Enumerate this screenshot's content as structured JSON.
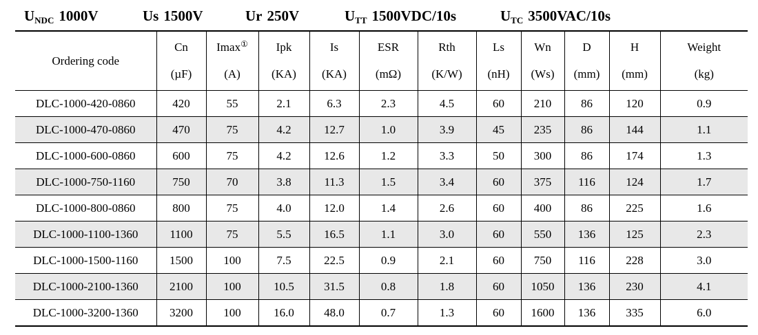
{
  "ratings": {
    "items": [
      {
        "symbol": "U",
        "sub": "NDC",
        "value": "1000V"
      },
      {
        "symbol": "Us",
        "sub": "",
        "value": "1500V"
      },
      {
        "symbol": "Ur",
        "sub": "",
        "value": "250V"
      },
      {
        "symbol": "U",
        "sub": "TT",
        "value": "1500VDC/10s"
      },
      {
        "symbol": "U",
        "sub": "TC",
        "value": "3500VAC/10s"
      }
    ]
  },
  "table": {
    "columns": [
      {
        "key": "ordering-code",
        "name": "Ordering code",
        "sup": "",
        "unit": ""
      },
      {
        "key": "cn",
        "name": "Cn",
        "sup": "",
        "unit": "(µF)"
      },
      {
        "key": "imax",
        "name": "Imax",
        "sup": "①",
        "unit": "(A)"
      },
      {
        "key": "ipk",
        "name": "Ipk",
        "sup": "",
        "unit": "(KA)"
      },
      {
        "key": "is",
        "name": "Is",
        "sup": "",
        "unit": "(KA)"
      },
      {
        "key": "esr",
        "name": "ESR",
        "sup": "",
        "unit": "(mΩ)"
      },
      {
        "key": "rth",
        "name": "Rth",
        "sup": "",
        "unit": "(K/W)"
      },
      {
        "key": "ls",
        "name": "Ls",
        "sup": "",
        "unit": "(nH)"
      },
      {
        "key": "wn",
        "name": "Wn",
        "sup": "",
        "unit": "(Ws)"
      },
      {
        "key": "d",
        "name": "D",
        "sup": "",
        "unit": "(mm)"
      },
      {
        "key": "h",
        "name": "H",
        "sup": "",
        "unit": "(mm)"
      },
      {
        "key": "weight",
        "name": "Weight",
        "sup": "",
        "unit": "(kg)"
      }
    ],
    "rows": [
      [
        "DLC-1000-420-0860",
        "420",
        "55",
        "2.1",
        "6.3",
        "2.3",
        "4.5",
        "60",
        "210",
        "86",
        "120",
        "0.9"
      ],
      [
        "DLC-1000-470-0860",
        "470",
        "75",
        "4.2",
        "12.7",
        "1.0",
        "3.9",
        "45",
        "235",
        "86",
        "144",
        "1.1"
      ],
      [
        "DLC-1000-600-0860",
        "600",
        "75",
        "4.2",
        "12.6",
        "1.2",
        "3.3",
        "50",
        "300",
        "86",
        "174",
        "1.3"
      ],
      [
        "DLC-1000-750-1160",
        "750",
        "70",
        "3.8",
        "11.3",
        "1.5",
        "3.4",
        "60",
        "375",
        "116",
        "124",
        "1.7"
      ],
      [
        "DLC-1000-800-0860",
        "800",
        "75",
        "4.0",
        "12.0",
        "1.4",
        "2.6",
        "60",
        "400",
        "86",
        "225",
        "1.6"
      ],
      [
        "DLC-1000-1100-1360",
        "1100",
        "75",
        "5.5",
        "16.5",
        "1.1",
        "3.0",
        "60",
        "550",
        "136",
        "125",
        "2.3"
      ],
      [
        "DLC-1000-1500-1160",
        "1500",
        "100",
        "7.5",
        "22.5",
        "0.9",
        "2.1",
        "60",
        "750",
        "116",
        "228",
        "3.0"
      ],
      [
        "DLC-1000-2100-1360",
        "2100",
        "100",
        "10.5",
        "31.5",
        "0.8",
        "1.8",
        "60",
        "1050",
        "136",
        "230",
        "4.1"
      ],
      [
        "DLC-1000-3200-1360",
        "3200",
        "100",
        "16.0",
        "48.0",
        "0.7",
        "1.3",
        "60",
        "1600",
        "136",
        "335",
        "6.0"
      ]
    ],
    "colors": {
      "stripe": "#e8e8e8",
      "border": "#000000",
      "text": "#000000",
      "background": "#ffffff"
    }
  }
}
